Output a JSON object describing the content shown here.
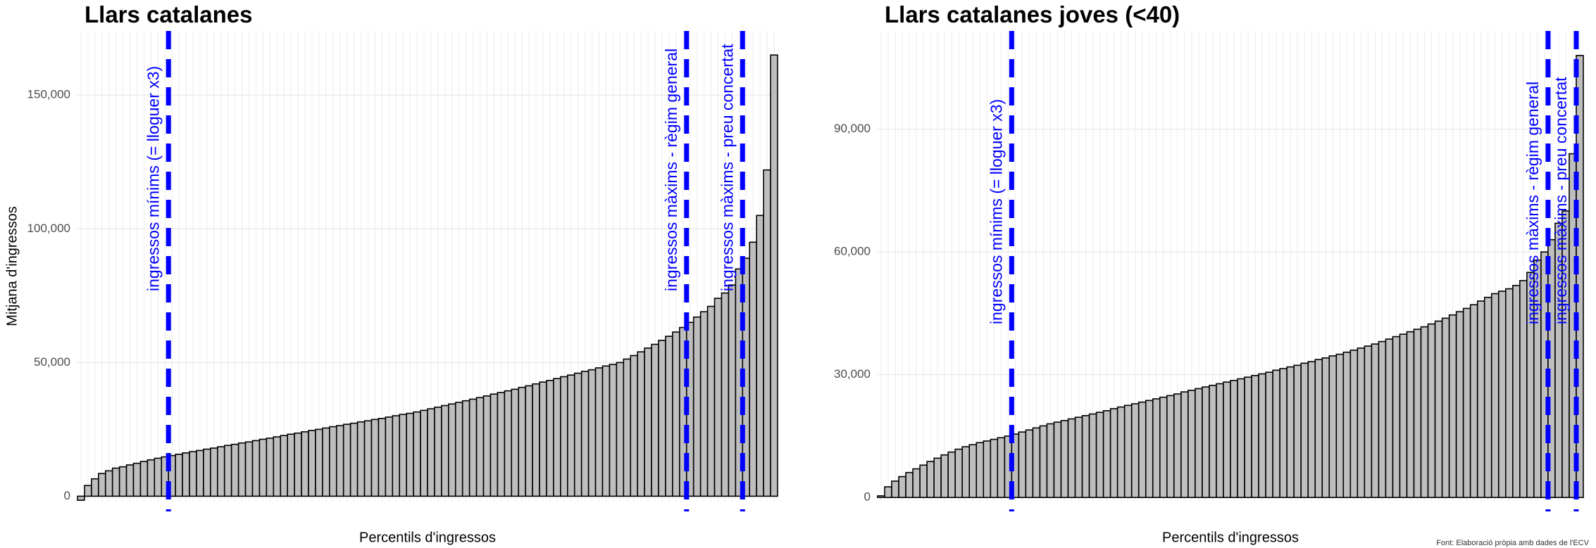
{
  "chart_data": [
    {
      "type": "bar",
      "title": "Llars catalanes",
      "xlabel": "Percentils d'ingressos",
      "ylabel": "Mitjana d'ingressos",
      "color": "#bebebe",
      "grid": true,
      "ylim": [
        -2000,
        174000
      ],
      "yticks": [
        0,
        {
          "value": 50000,
          "label": "50,000"
        },
        {
          "value": 100000,
          "label": "100,000"
        },
        {
          "value": 150000,
          "label": "150,000"
        }
      ],
      "values": [
        -1500,
        4000,
        6500,
        8500,
        9500,
        10500,
        11000,
        11700,
        12300,
        13000,
        13600,
        14200,
        14700,
        15200,
        15700,
        16200,
        16700,
        17100,
        17600,
        18000,
        18500,
        19000,
        19400,
        19900,
        20300,
        20800,
        21300,
        21700,
        22200,
        22700,
        23200,
        23600,
        24100,
        24600,
        25000,
        25500,
        26000,
        26400,
        26900,
        27300,
        27800,
        28200,
        28700,
        29100,
        29600,
        30100,
        30600,
        31000,
        31500,
        32100,
        32700,
        33300,
        33900,
        34500,
        35100,
        35700,
        36300,
        36900,
        37500,
        38200,
        38800,
        39400,
        40000,
        40700,
        41300,
        42000,
        42700,
        43300,
        44000,
        44700,
        45300,
        46000,
        46700,
        47300,
        48000,
        48700,
        49300,
        50000,
        51300,
        52600,
        54000,
        55400,
        56800,
        58300,
        59800,
        61400,
        63100,
        65000,
        67000,
        69000,
        71000,
        74000,
        76000,
        79000,
        85000,
        89000,
        95000,
        105000,
        122000,
        165000
      ],
      "vlines": [
        {
          "x": 13,
          "label": "ingressos mínims (= lloguer x3)"
        },
        {
          "x": 87,
          "label": "ingressos màxims - règim general"
        },
        {
          "x": 95,
          "label": "ingressos màxims - preu concertat"
        }
      ],
      "vline_color": "#0000ff"
    },
    {
      "type": "bar",
      "title": "Llars catalanes joves (<40)",
      "xlabel": "Percentils d'ingressos",
      "color": "#bebebe",
      "grid": true,
      "ylim": [
        -1000,
        114000
      ],
      "yticks": [
        0,
        {
          "value": 30000,
          "label": "30,000"
        },
        {
          "value": 60000,
          "label": "60,000"
        },
        {
          "value": 90000,
          "label": "90,000"
        }
      ],
      "values": [
        400,
        2600,
        4000,
        5100,
        6100,
        7000,
        7900,
        8800,
        9600,
        10400,
        11100,
        11800,
        12400,
        12900,
        13400,
        13800,
        14200,
        14600,
        15000,
        15500,
        16000,
        16500,
        17000,
        17500,
        18000,
        18400,
        18800,
        19200,
        19600,
        20000,
        20400,
        20800,
        21200,
        21700,
        22100,
        22500,
        22900,
        23300,
        23700,
        24100,
        24500,
        24900,
        25300,
        25800,
        26200,
        26600,
        27000,
        27400,
        27800,
        28200,
        28600,
        29000,
        29400,
        29800,
        30200,
        30600,
        31100,
        31500,
        31900,
        32300,
        32800,
        33200,
        33700,
        34100,
        34600,
        35000,
        35500,
        36000,
        36500,
        37000,
        37500,
        38100,
        38700,
        39300,
        39900,
        40500,
        41100,
        41700,
        42400,
        43100,
        43800,
        44600,
        45400,
        46200,
        47100,
        48000,
        48900,
        49800,
        50400,
        51000,
        51800,
        53000,
        55000,
        58000,
        60000,
        63000,
        67000,
        70000,
        84000,
        108000
      ],
      "vlines": [
        {
          "x": 19,
          "label": "ingressos mínims (= lloguer x3)"
        },
        {
          "x": 95,
          "label": "ingressos màxims - règim general"
        },
        {
          "x": 99,
          "label": "ingressos màxims - preu concertat"
        }
      ],
      "vline_color": "#0000ff"
    }
  ],
  "caption": "Font: Elaboració pròpia amb dades de l'ECV"
}
